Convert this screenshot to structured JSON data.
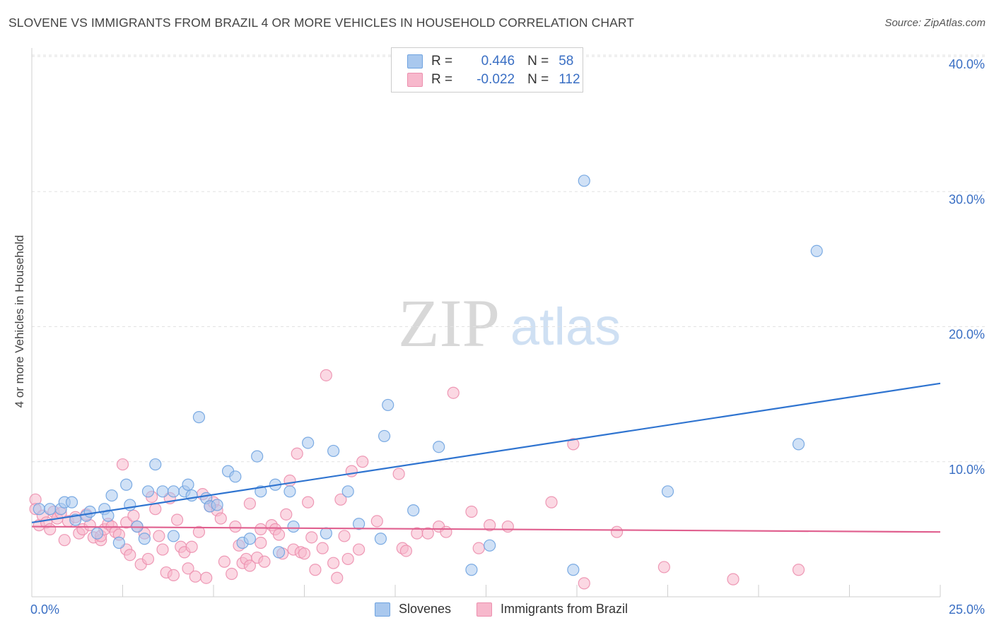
{
  "header": {
    "title": "SLOVENE VS IMMIGRANTS FROM BRAZIL 4 OR MORE VEHICLES IN HOUSEHOLD CORRELATION CHART",
    "source": "Source: ZipAtlas.com"
  },
  "watermark": {
    "zip": "ZIP",
    "atlas": "atlas"
  },
  "legend": {
    "rows": [
      {
        "r_label": "R =",
        "r_value": "0.446",
        "n_label": "N =",
        "n_value": "58",
        "color": "#a9c8ee"
      },
      {
        "r_label": "R =",
        "r_value": "-0.022",
        "n_label": "N =",
        "n_value": "112",
        "color": "#f7b8cc"
      }
    ]
  },
  "bottom_legend": {
    "items": [
      {
        "label": "Slovenes",
        "color": "#a9c8ee"
      },
      {
        "label": "Immigrants from Brazil",
        "color": "#f7b8cc"
      }
    ]
  },
  "chart_data": {
    "type": "scatter",
    "ylabel": "4 or more Vehicles in Household",
    "xlim": [
      0,
      25
    ],
    "ylim": [
      0,
      40
    ],
    "x_tick_labels": [
      {
        "value": 0,
        "label": "0.0%"
      },
      {
        "value": 25,
        "label": "25.0%"
      }
    ],
    "y_tick_labels": [
      {
        "value": 10,
        "label": "10.0%"
      },
      {
        "value": 20,
        "label": "20.0%"
      },
      {
        "value": 30,
        "label": "30.0%"
      },
      {
        "value": 40,
        "label": "40.0%"
      }
    ],
    "grid": true,
    "series": [
      {
        "name": "Slovenes",
        "color": "#6fa3e0",
        "fill": "#a9c8ee",
        "trend": {
          "x": [
            0,
            25
          ],
          "y": [
            5.5,
            15.8
          ],
          "color": "#2f74d0"
        },
        "points": [
          [
            0.2,
            6.5
          ],
          [
            0.5,
            6.5
          ],
          [
            0.8,
            6.5
          ],
          [
            0.9,
            7.0
          ],
          [
            1.1,
            7.0
          ],
          [
            1.2,
            5.7
          ],
          [
            1.5,
            6.0
          ],
          [
            1.6,
            6.3
          ],
          [
            1.8,
            4.7
          ],
          [
            2.0,
            6.5
          ],
          [
            2.1,
            6.0
          ],
          [
            2.2,
            7.5
          ],
          [
            2.4,
            4.0
          ],
          [
            2.6,
            8.3
          ],
          [
            2.7,
            6.8
          ],
          [
            2.9,
            5.2
          ],
          [
            3.1,
            4.3
          ],
          [
            3.2,
            7.8
          ],
          [
            3.4,
            9.8
          ],
          [
            3.6,
            7.8
          ],
          [
            3.9,
            7.8
          ],
          [
            3.9,
            4.5
          ],
          [
            4.2,
            7.8
          ],
          [
            4.3,
            8.3
          ],
          [
            4.4,
            7.5
          ],
          [
            4.6,
            13.3
          ],
          [
            4.8,
            7.3
          ],
          [
            4.9,
            6.7
          ],
          [
            5.1,
            6.8
          ],
          [
            5.4,
            9.3
          ],
          [
            5.6,
            8.9
          ],
          [
            5.8,
            4.0
          ],
          [
            6.0,
            4.3
          ],
          [
            6.2,
            10.4
          ],
          [
            6.3,
            7.8
          ],
          [
            6.7,
            8.3
          ],
          [
            6.8,
            3.3
          ],
          [
            7.1,
            7.8
          ],
          [
            7.2,
            5.2
          ],
          [
            7.6,
            11.4
          ],
          [
            8.1,
            4.7
          ],
          [
            8.3,
            10.8
          ],
          [
            8.7,
            7.8
          ],
          [
            9.0,
            5.4
          ],
          [
            9.6,
            4.3
          ],
          [
            9.7,
            11.9
          ],
          [
            9.8,
            14.2
          ],
          [
            10.5,
            6.4
          ],
          [
            11.2,
            11.1
          ],
          [
            12.1,
            2.0
          ],
          [
            12.6,
            3.8
          ],
          [
            14.9,
            2.0
          ],
          [
            15.2,
            30.8
          ],
          [
            17.5,
            7.8
          ],
          [
            21.1,
            11.3
          ],
          [
            21.6,
            25.6
          ]
        ]
      },
      {
        "name": "Immigrants from Brazil",
        "color": "#ec8fae",
        "fill": "#f7b8cc",
        "trend": {
          "x": [
            0,
            25
          ],
          "y": [
            5.2,
            4.8
          ],
          "color": "#e0608f"
        },
        "points": [
          [
            0.1,
            7.2
          ],
          [
            0.1,
            6.5
          ],
          [
            0.2,
            5.3
          ],
          [
            0.3,
            6.0
          ],
          [
            0.4,
            5.5
          ],
          [
            0.5,
            5.0
          ],
          [
            0.6,
            6.3
          ],
          [
            0.7,
            5.8
          ],
          [
            0.8,
            6.2
          ],
          [
            0.9,
            4.2
          ],
          [
            1.0,
            5.6
          ],
          [
            1.2,
            5.9
          ],
          [
            1.3,
            4.7
          ],
          [
            1.4,
            5.0
          ],
          [
            1.5,
            6.1
          ],
          [
            1.6,
            5.3
          ],
          [
            1.7,
            4.4
          ],
          [
            1.9,
            4.2
          ],
          [
            1.9,
            4.5
          ],
          [
            2.0,
            5.0
          ],
          [
            2.1,
            5.4
          ],
          [
            2.2,
            5.2
          ],
          [
            2.3,
            4.8
          ],
          [
            2.4,
            4.6
          ],
          [
            2.5,
            9.8
          ],
          [
            2.6,
            5.5
          ],
          [
            2.6,
            3.5
          ],
          [
            2.7,
            3.1
          ],
          [
            2.8,
            6.0
          ],
          [
            2.9,
            5.2
          ],
          [
            3.0,
            2.4
          ],
          [
            3.1,
            4.7
          ],
          [
            3.2,
            2.8
          ],
          [
            3.3,
            7.4
          ],
          [
            3.4,
            6.5
          ],
          [
            3.5,
            4.5
          ],
          [
            3.6,
            3.5
          ],
          [
            3.7,
            1.8
          ],
          [
            3.8,
            7.3
          ],
          [
            3.9,
            1.6
          ],
          [
            4.0,
            5.7
          ],
          [
            4.1,
            3.7
          ],
          [
            4.2,
            3.3
          ],
          [
            4.3,
            2.1
          ],
          [
            4.4,
            3.7
          ],
          [
            4.5,
            1.5
          ],
          [
            4.6,
            4.8
          ],
          [
            4.7,
            7.6
          ],
          [
            4.8,
            1.4
          ],
          [
            4.9,
            6.7
          ],
          [
            5.0,
            7.0
          ],
          [
            5.1,
            6.4
          ],
          [
            5.2,
            5.8
          ],
          [
            5.3,
            2.6
          ],
          [
            5.5,
            1.7
          ],
          [
            5.6,
            5.2
          ],
          [
            5.7,
            3.8
          ],
          [
            5.8,
            2.5
          ],
          [
            5.9,
            2.8
          ],
          [
            6.0,
            6.9
          ],
          [
            6.0,
            2.3
          ],
          [
            6.2,
            2.9
          ],
          [
            6.3,
            5.0
          ],
          [
            6.3,
            4.0
          ],
          [
            6.4,
            2.6
          ],
          [
            6.6,
            5.3
          ],
          [
            6.7,
            5.0
          ],
          [
            6.8,
            4.6
          ],
          [
            6.9,
            3.2
          ],
          [
            7.0,
            6.1
          ],
          [
            7.1,
            8.6
          ],
          [
            7.2,
            3.5
          ],
          [
            7.3,
            10.6
          ],
          [
            7.4,
            3.3
          ],
          [
            7.5,
            3.2
          ],
          [
            7.6,
            7.0
          ],
          [
            7.7,
            4.4
          ],
          [
            7.8,
            2.0
          ],
          [
            8.0,
            3.6
          ],
          [
            8.1,
            16.4
          ],
          [
            8.3,
            2.5
          ],
          [
            8.4,
            1.4
          ],
          [
            8.5,
            7.2
          ],
          [
            8.6,
            4.5
          ],
          [
            8.7,
            2.8
          ],
          [
            8.8,
            9.3
          ],
          [
            9.0,
            3.5
          ],
          [
            9.1,
            10.0
          ],
          [
            9.5,
            5.6
          ],
          [
            10.1,
            9.1
          ],
          [
            10.2,
            3.6
          ],
          [
            10.3,
            3.4
          ],
          [
            10.6,
            4.7
          ],
          [
            10.9,
            4.7
          ],
          [
            11.2,
            5.2
          ],
          [
            11.4,
            4.8
          ],
          [
            11.6,
            15.1
          ],
          [
            12.1,
            6.3
          ],
          [
            12.3,
            3.6
          ],
          [
            12.6,
            5.3
          ],
          [
            13.1,
            5.2
          ],
          [
            14.3,
            7.0
          ],
          [
            14.9,
            11.3
          ],
          [
            15.2,
            1.0
          ],
          [
            16.1,
            4.8
          ],
          [
            17.4,
            2.2
          ],
          [
            19.3,
            1.3
          ],
          [
            21.1,
            2.0
          ]
        ]
      }
    ]
  }
}
